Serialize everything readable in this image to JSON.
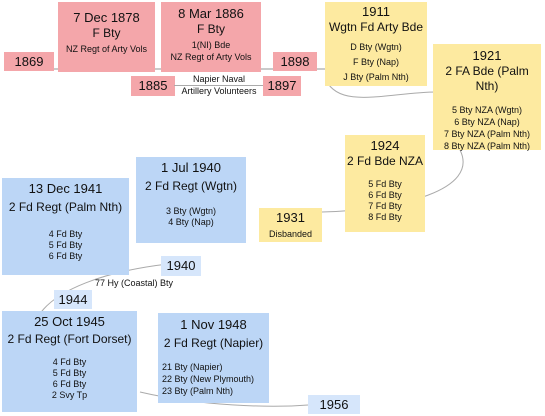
{
  "boxes": {
    "y1869": "1869",
    "fbty1878": {
      "date": "7 Dec 1878",
      "title": "F Bty",
      "note": "NZ Regt of Arty Vols"
    },
    "fbty1886": {
      "date": "8 Mar 1886",
      "title": "F Bty",
      "line1": "1(NI) Bde",
      "line2": "NZ Regt of Arty Vols"
    },
    "y1898": "1898",
    "y1885": "1885",
    "napier": {
      "line1": "Napier Naval",
      "line2": "Artillery Volunteers"
    },
    "y1897": "1897",
    "wgtn1911": {
      "date": "1911",
      "title": "Wgtn Fd Arty Bde",
      "units": [
        "D Bty (Wgtn)",
        "F Bty (Nap)",
        "J Bty (Palm Nth)"
      ]
    },
    "fa1921": {
      "date": "1921",
      "title": "2 FA Bde (Palm Nth)",
      "units": [
        "5 Bty NZA (Wgtn)",
        "6 Bty NZA (Nap)",
        "7 Bty NZA (Palm Nth)",
        "8 Bty NZA (Palm Nth)"
      ]
    },
    "fd1924": {
      "date": "1924",
      "title": "2 Fd Bde NZA",
      "units": [
        "5 Fd Bty",
        "6 Fd Bty",
        "7 Fd Bty",
        "8 Fd Bty"
      ]
    },
    "disb1931": {
      "date": "1931",
      "title": "Disbanded"
    },
    "regt1940": {
      "date": "1 Jul 1940",
      "title": "2 Fd Regt (Wgtn)",
      "units": [
        "3 Bty (Wgtn)",
        "4 Bty (Nap)"
      ]
    },
    "regt1941": {
      "date": "13 Dec 1941",
      "title": "2 Fd Regt (Palm Nth)",
      "units": [
        "4 Fd Bty",
        "5 Fd Bty",
        "6 Fd Bty"
      ]
    },
    "y1940": "1940",
    "hy": "77 Hy (Coastal) Bty",
    "y1944": "1944",
    "regt1945": {
      "date": "25 Oct 1945",
      "title": "2 Fd Regt (Fort Dorset)",
      "units": [
        "4 Fd Bty",
        "5 Fd Bty",
        "6 Fd Bty",
        "2 Svy Tp"
      ]
    },
    "regt1948": {
      "date": "1 Nov 1948",
      "title": "2 Fd Regt (Napier)",
      "units": [
        "21 Bty (Napier)",
        "22 Bty (New Plymouth)",
        "23 Bty (Palm Nth)"
      ]
    },
    "y1956": "1956"
  },
  "colors": {
    "pink": "#f4a6aa",
    "yellow": "#fdeaa0",
    "blue": "#bcd6f6",
    "light_blue": "#d6e6fb",
    "line": "#aaaaaa"
  }
}
